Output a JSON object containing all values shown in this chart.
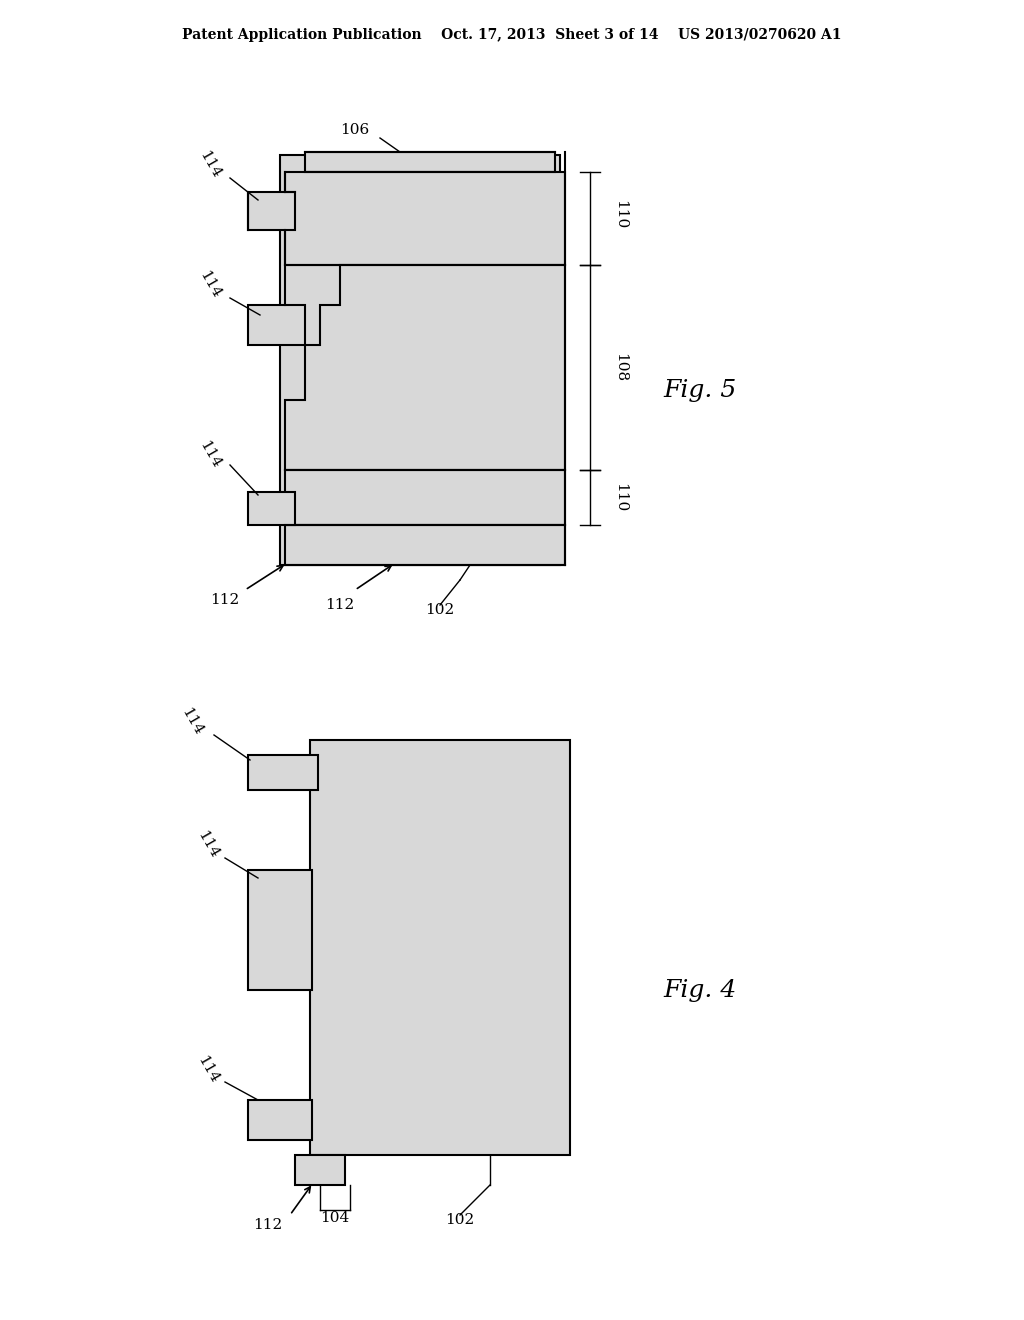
{
  "bg_color": "#ffffff",
  "line_color": "#000000",
  "fill_color": "#d8d8d8",
  "header_text": "Patent Application Publication    Oct. 17, 2013  Sheet 3 of 14    US 2013/0270620 A1",
  "fig5_label": "Fig. 5",
  "fig4_label": "Fig. 4",
  "labels": {
    "102": "102",
    "104": "104",
    "106": "106",
    "108": "108",
    "110_top": "110",
    "110_bot": "110",
    "112_fig5_left": "112",
    "112_fig5_right": "112",
    "114_fig5_top": "114",
    "114_fig5_mid": "114",
    "114_fig5_bot": "114",
    "112_fig4": "112",
    "114_fig4_top": "114",
    "114_fig4_mid": "114",
    "114_fig4_bot": "114",
    "102_fig4": "102",
    "104_fig4": "104"
  }
}
